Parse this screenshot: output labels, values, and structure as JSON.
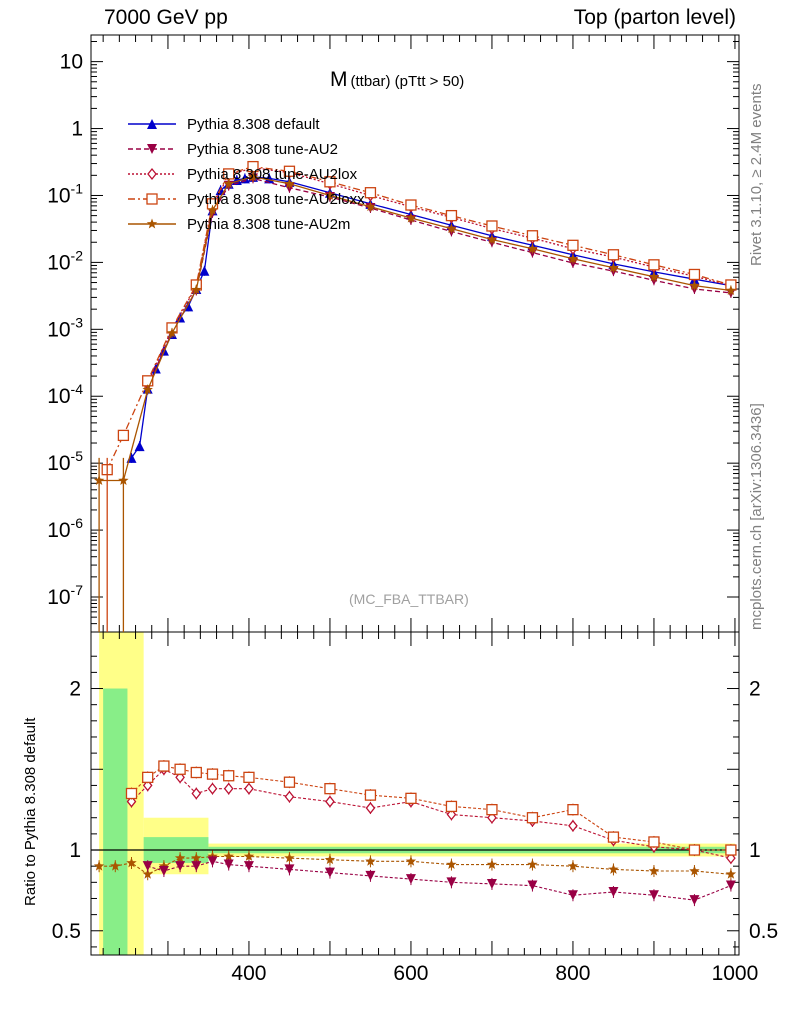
{
  "header": {
    "left": "7000 GeV pp",
    "right": "Top (parton level)"
  },
  "side": {
    "rivet": "Rivet 3.1.10, ≥ 2.4M events",
    "mcplots": "mcplots.cern.ch [arXiv:1306.3436]"
  },
  "colors": {
    "default": "#0000cc",
    "au2": "#990044",
    "au2lox": "#bb1133",
    "au2loxx": "#cc4411",
    "au2m": "#aa5500",
    "band_yellow": "#ffff88",
    "band_green": "#88ee88"
  },
  "chart_data": [
    {
      "type": "line",
      "title": "M",
      "subtitle": "(ttbar)  (pTtt > 50)",
      "tag": "(MC_FBA_TTBAR)",
      "yscale": "log",
      "xlim": [
        205,
        1005
      ],
      "ylim": [
        3e-08,
        25
      ],
      "ytick_labels": [
        "10",
        "1",
        "10^-1",
        "10^-2",
        "10^-3",
        "10^-4",
        "10^-5",
        "10^-6",
        "10^-7"
      ],
      "legend_position": "top-left",
      "series": [
        {
          "name": "Pythia 8.308 default",
          "key": "default",
          "marker": "triangle-up",
          "line": "solid",
          "points": [
            [
              255,
              1.2e-05
            ],
            [
              265,
              1.8e-05
            ],
            [
              275,
              0.00013
            ],
            [
              285,
              0.00026
            ],
            [
              295,
              0.00048
            ],
            [
              305,
              0.00085
            ],
            [
              315,
              0.0015
            ],
            [
              325,
              0.0022
            ],
            [
              335,
              0.004
            ],
            [
              345,
              0.0075
            ],
            [
              355,
              0.06
            ],
            [
              365,
              0.12
            ],
            [
              375,
              0.15
            ],
            [
              385,
              0.17
            ],
            [
              395,
              0.18
            ],
            [
              405,
              0.19
            ],
            [
              425,
              0.18
            ],
            [
              450,
              0.16
            ],
            [
              500,
              0.11
            ],
            [
              550,
              0.075
            ],
            [
              600,
              0.052
            ],
            [
              650,
              0.036
            ],
            [
              700,
              0.025
            ],
            [
              750,
              0.018
            ],
            [
              800,
              0.013
            ],
            [
              850,
              0.0095
            ],
            [
              900,
              0.0072
            ],
            [
              950,
              0.0056
            ],
            [
              995,
              0.0045
            ]
          ]
        },
        {
          "name": "Pythia 8.308 tune-AU2",
          "key": "au2",
          "marker": "triangle-down",
          "line": "dashed",
          "points": [
            [
              275,
              0.00014
            ],
            [
              305,
              0.0009
            ],
            [
              335,
              0.0038
            ],
            [
              355,
              0.055
            ],
            [
              375,
              0.14
            ],
            [
              405,
              0.18
            ],
            [
              450,
              0.13
            ],
            [
              500,
              0.095
            ],
            [
              550,
              0.065
            ],
            [
              600,
              0.043
            ],
            [
              650,
              0.029
            ],
            [
              700,
              0.02
            ],
            [
              750,
              0.014
            ],
            [
              800,
              0.0098
            ],
            [
              850,
              0.0074
            ],
            [
              900,
              0.0054
            ],
            [
              950,
              0.004
            ],
            [
              995,
              0.0035
            ]
          ]
        },
        {
          "name": "Pythia 8.308 tune-AU2lox",
          "key": "au2lox",
          "marker": "diamond",
          "line": "dotted",
          "points": [
            [
              275,
              0.00016
            ],
            [
              305,
              0.001
            ],
            [
              335,
              0.0044
            ],
            [
              355,
              0.07
            ],
            [
              375,
              0.2
            ],
            [
              405,
              0.26
            ],
            [
              450,
              0.22
            ],
            [
              500,
              0.15
            ],
            [
              550,
              0.1
            ],
            [
              600,
              0.068
            ],
            [
              650,
              0.047
            ],
            [
              700,
              0.032
            ],
            [
              750,
              0.023
            ],
            [
              800,
              0.016
            ],
            [
              850,
              0.012
            ],
            [
              900,
              0.0085
            ],
            [
              950,
              0.0062
            ],
            [
              995,
              0.0045
            ]
          ]
        },
        {
          "name": "Pythia 8.308 tune-AU2loxx",
          "key": "au2loxx",
          "marker": "square",
          "line": "dashdot",
          "points": [
            [
              225,
              8e-06
            ],
            [
              245,
              2.6e-05
            ],
            [
              275,
              0.00017
            ],
            [
              305,
              0.00105
            ],
            [
              335,
              0.0046
            ],
            [
              355,
              0.075
            ],
            [
              375,
              0.21
            ],
            [
              405,
              0.27
            ],
            [
              450,
              0.23
            ],
            [
              500,
              0.16
            ],
            [
              550,
              0.11
            ],
            [
              600,
              0.072
            ],
            [
              650,
              0.05
            ],
            [
              700,
              0.035
            ],
            [
              750,
              0.025
            ],
            [
              800,
              0.018
            ],
            [
              850,
              0.013
            ],
            [
              900,
              0.0092
            ],
            [
              950,
              0.0066
            ],
            [
              995,
              0.0046
            ]
          ]
        },
        {
          "name": "Pythia 8.308 tune-AU2m",
          "key": "au2m",
          "marker": "star",
          "line": "solid",
          "points": [
            [
              215,
              5.5e-06
            ],
            [
              245,
              5.5e-06
            ],
            [
              275,
              0.000125
            ],
            [
              305,
              0.00088
            ],
            [
              335,
              0.0039
            ],
            [
              355,
              0.06
            ],
            [
              375,
              0.15
            ],
            [
              405,
              0.19
            ],
            [
              450,
              0.15
            ],
            [
              500,
              0.1
            ],
            [
              550,
              0.068
            ],
            [
              600,
              0.046
            ],
            [
              650,
              0.032
            ],
            [
              700,
              0.022
            ],
            [
              750,
              0.016
            ],
            [
              800,
              0.0113
            ],
            [
              850,
              0.0083
            ],
            [
              900,
              0.0061
            ],
            [
              950,
              0.0045
            ],
            [
              995,
              0.0038
            ]
          ]
        }
      ]
    },
    {
      "type": "line",
      "ylabel": "Ratio to Pythia 8.308 default",
      "xlim": [
        205,
        1005
      ],
      "ylim": [
        0.35,
        2.35
      ],
      "xtick_labels": [
        "400",
        "600",
        "800",
        "1000"
      ],
      "ytick_labels": [
        "2",
        "1",
        "0.5"
      ],
      "series": [
        {
          "key": "au2lox",
          "marker": "diamond",
          "points": [
            [
              255,
              1.3
            ],
            [
              275,
              1.4
            ],
            [
              295,
              1.5
            ],
            [
              315,
              1.45
            ],
            [
              335,
              1.35
            ],
            [
              355,
              1.38
            ],
            [
              375,
              1.38
            ],
            [
              400,
              1.38
            ],
            [
              450,
              1.33
            ],
            [
              500,
              1.3
            ],
            [
              550,
              1.26
            ],
            [
              600,
              1.3
            ],
            [
              650,
              1.22
            ],
            [
              700,
              1.2
            ],
            [
              750,
              1.18
            ],
            [
              800,
              1.15
            ],
            [
              850,
              1.06
            ],
            [
              900,
              1.02
            ],
            [
              950,
              1.0
            ],
            [
              995,
              0.95
            ]
          ]
        },
        {
          "key": "au2loxx",
          "marker": "square",
          "points": [
            [
              255,
              1.35
            ],
            [
              275,
              1.45
            ],
            [
              295,
              1.52
            ],
            [
              315,
              1.5
            ],
            [
              335,
              1.48
            ],
            [
              355,
              1.47
            ],
            [
              375,
              1.46
            ],
            [
              400,
              1.45
            ],
            [
              450,
              1.42
            ],
            [
              500,
              1.38
            ],
            [
              550,
              1.34
            ],
            [
              600,
              1.32
            ],
            [
              650,
              1.27
            ],
            [
              700,
              1.25
            ],
            [
              750,
              1.2
            ],
            [
              800,
              1.25
            ],
            [
              850,
              1.08
            ],
            [
              900,
              1.05
            ],
            [
              950,
              1.0
            ],
            [
              995,
              1.0
            ]
          ]
        },
        {
          "key": "au2m",
          "marker": "star",
          "points": [
            [
              215,
              0.9
            ],
            [
              235,
              0.9
            ],
            [
              255,
              0.92
            ],
            [
              275,
              0.85
            ],
            [
              295,
              0.9
            ],
            [
              315,
              0.95
            ],
            [
              335,
              0.95
            ],
            [
              355,
              0.96
            ],
            [
              375,
              0.96
            ],
            [
              400,
              0.96
            ],
            [
              450,
              0.95
            ],
            [
              500,
              0.94
            ],
            [
              550,
              0.93
            ],
            [
              600,
              0.93
            ],
            [
              650,
              0.91
            ],
            [
              700,
              0.91
            ],
            [
              750,
              0.91
            ],
            [
              800,
              0.9
            ],
            [
              850,
              0.88
            ],
            [
              900,
              0.87
            ],
            [
              950,
              0.87
            ],
            [
              995,
              0.85
            ]
          ]
        },
        {
          "key": "au2",
          "marker": "triangle-down",
          "points": [
            [
              275,
              0.9
            ],
            [
              295,
              0.87
            ],
            [
              315,
              0.9
            ],
            [
              335,
              0.9
            ],
            [
              355,
              0.93
            ],
            [
              375,
              0.91
            ],
            [
              400,
              0.9
            ],
            [
              450,
              0.88
            ],
            [
              500,
              0.86
            ],
            [
              550,
              0.84
            ],
            [
              600,
              0.82
            ],
            [
              650,
              0.8
            ],
            [
              700,
              0.79
            ],
            [
              750,
              0.78
            ],
            [
              800,
              0.72
            ],
            [
              850,
              0.74
            ],
            [
              900,
              0.72
            ],
            [
              950,
              0.69
            ],
            [
              995,
              0.78
            ]
          ]
        }
      ]
    }
  ]
}
